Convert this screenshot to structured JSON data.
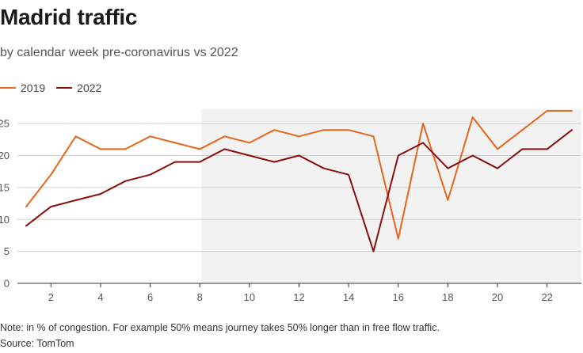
{
  "header": {
    "title": "Madrid traffic",
    "subtitle": "by calendar week pre-coronavirus vs 2022"
  },
  "footer": {
    "note": "Note: in % of congestion. For example 50% means journey takes 50% longer than in free flow traffic.",
    "source": "Source: TomTom"
  },
  "colors": {
    "series_2019": "#e8651a",
    "series_2022": "#8b0e0e",
    "shade": "#f2f2f2",
    "grid": "#d0d0d0",
    "axis": "#333333"
  },
  "chart_data": {
    "type": "line",
    "title": "Madrid traffic",
    "xlabel": "",
    "ylabel": "",
    "x": [
      1,
      2,
      3,
      4,
      5,
      6,
      7,
      8,
      9,
      10,
      11,
      12,
      13,
      14,
      15,
      16,
      17,
      18,
      19,
      20,
      21,
      22,
      23
    ],
    "xlim": [
      1,
      23
    ],
    "ylim": [
      0,
      27
    ],
    "xticks": [
      2,
      4,
      6,
      8,
      10,
      12,
      14,
      16,
      18,
      20,
      22
    ],
    "yticks": [
      0,
      5,
      10,
      15,
      20,
      25
    ],
    "shaded_region": [
      8,
      23
    ],
    "legend_position": "top-left",
    "series": [
      {
        "name": "2019",
        "values": [
          12,
          17,
          23,
          21,
          21,
          23,
          22,
          21,
          23,
          22,
          24,
          23,
          24,
          24,
          23,
          7,
          25,
          13,
          26,
          21,
          24,
          27,
          27
        ]
      },
      {
        "name": "2022",
        "values": [
          9,
          12,
          13,
          14,
          16,
          17,
          19,
          19,
          21,
          20,
          19,
          20,
          18,
          17,
          5,
          20,
          22,
          18,
          20,
          18,
          21,
          21,
          24
        ]
      }
    ]
  }
}
